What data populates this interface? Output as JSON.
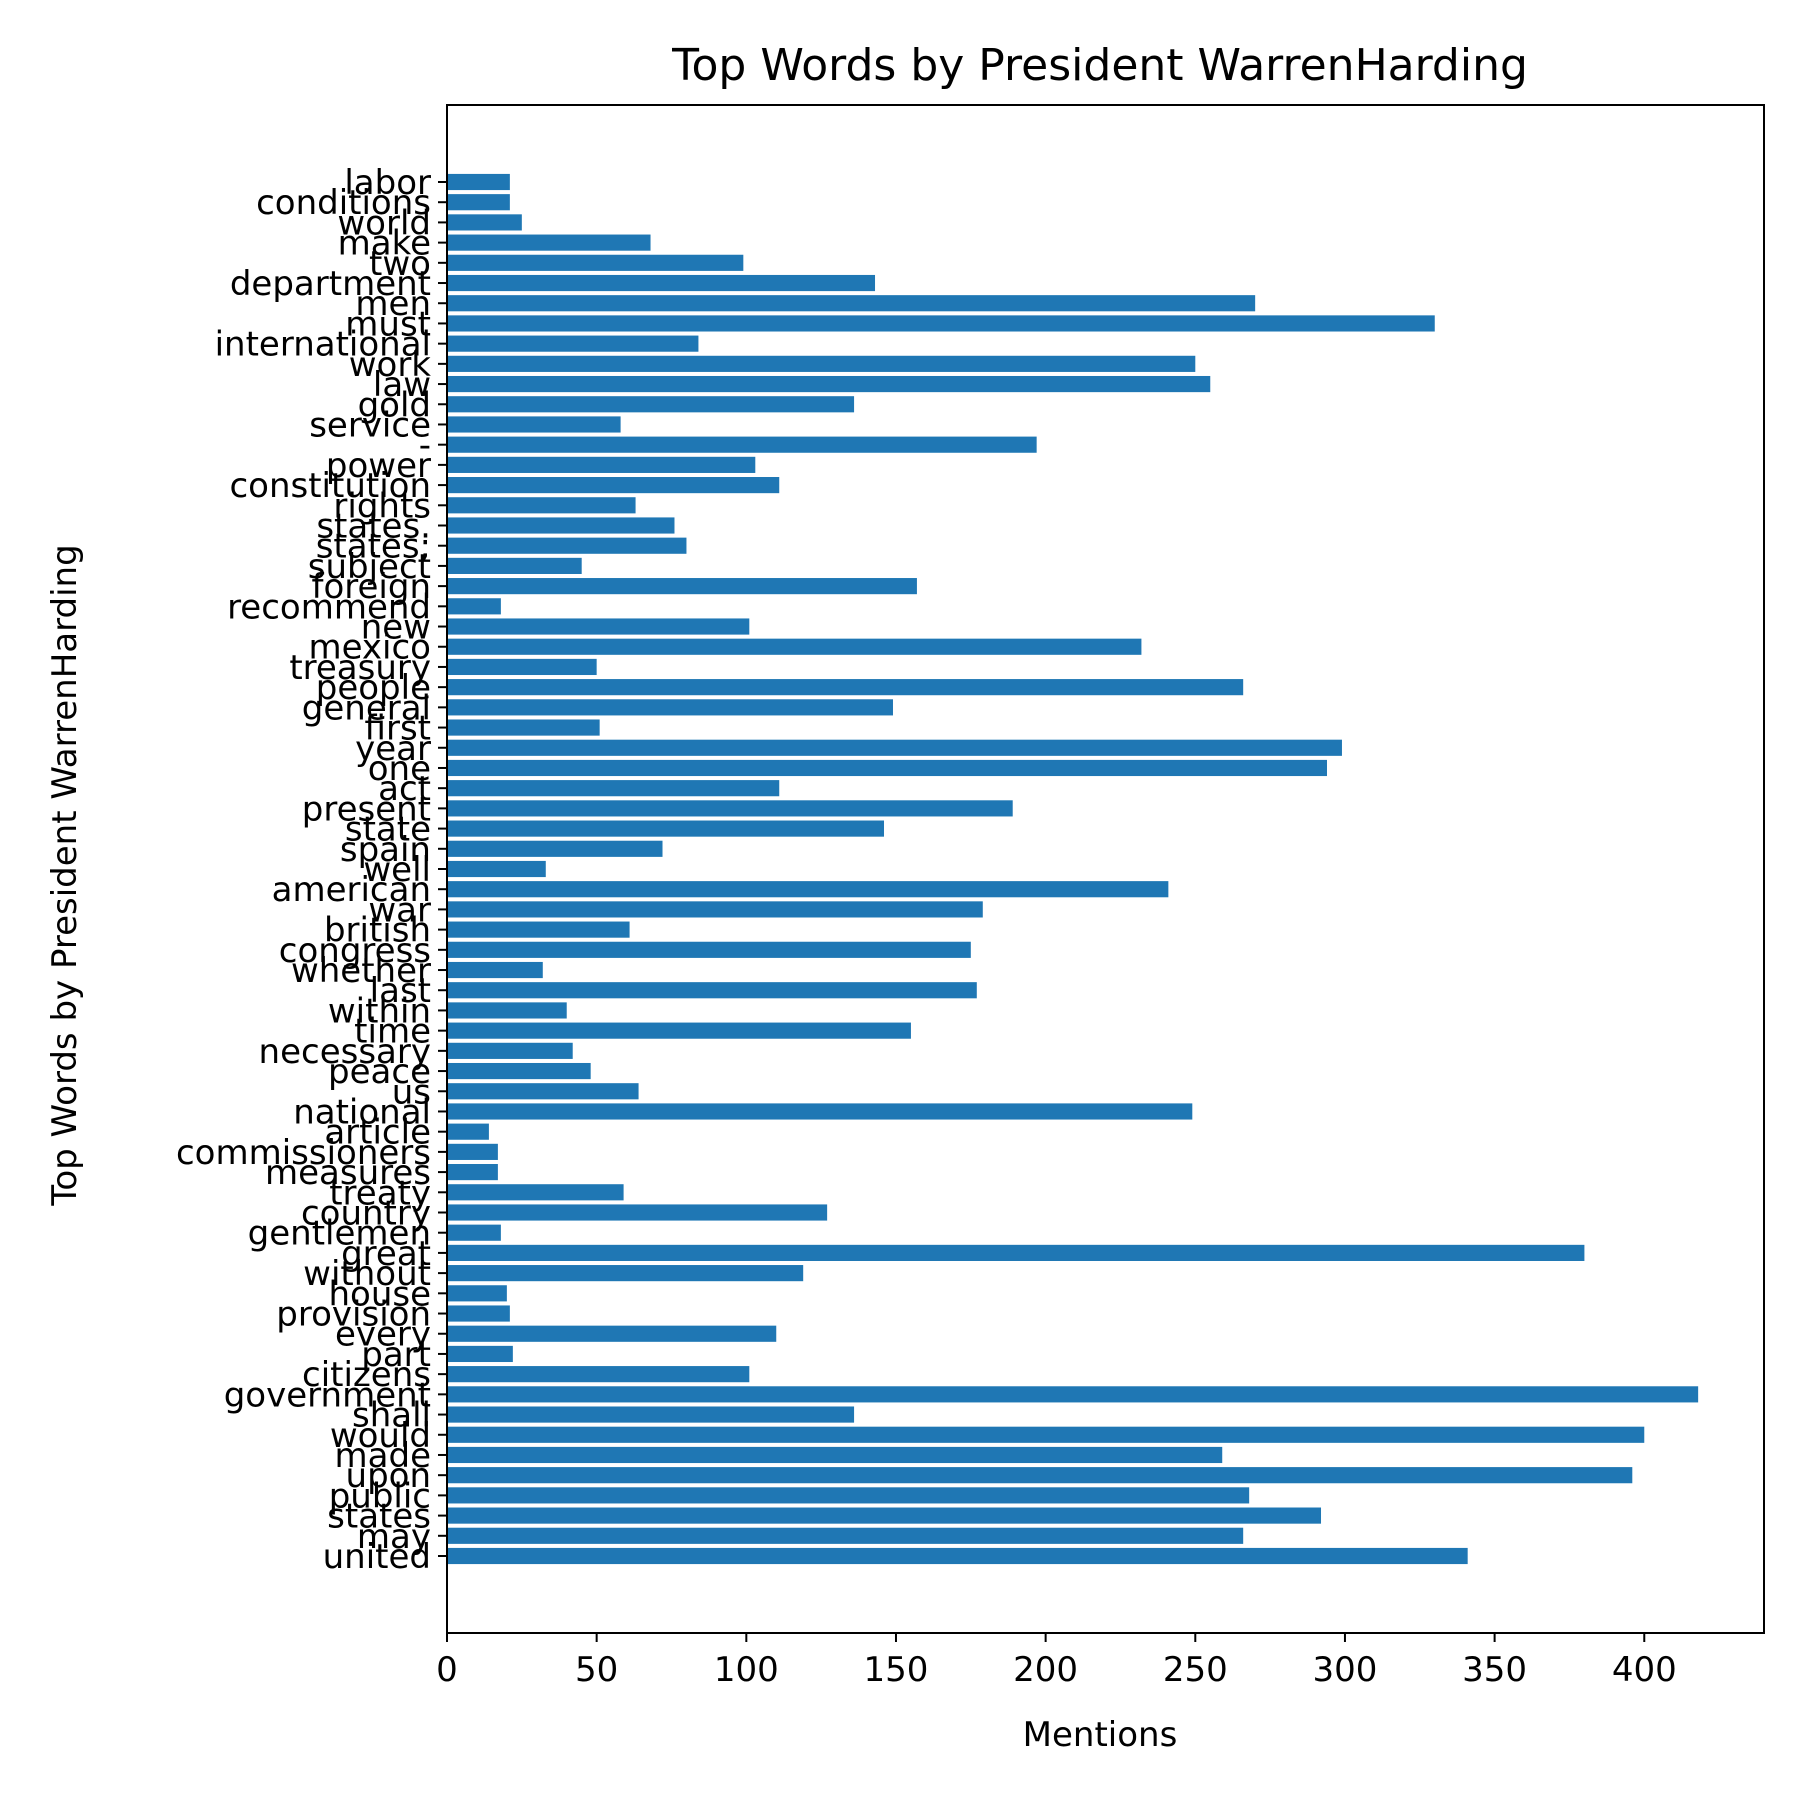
{
  "chart_data": {
    "type": "bar",
    "orientation": "horizontal",
    "title": "Top Words by President WarrenHarding",
    "xlabel": "Mentions",
    "ylabel": "Top Words by President WarrenHarding",
    "xlim": [
      0,
      440
    ],
    "xticks": [
      0,
      50,
      100,
      150,
      200,
      250,
      300,
      350,
      400
    ],
    "grid": false,
    "bar_color": "#1f77b4",
    "categories": [
      "united",
      "may",
      "states",
      "public",
      "upon",
      "made",
      "would",
      "shall",
      "government",
      "citizens",
      "part",
      "every",
      "provision",
      "house",
      "without",
      "great",
      "gentlemen",
      "country",
      "treaty",
      "measures",
      "commissioners",
      "article",
      "national",
      "us",
      "peace",
      "necessary",
      "time",
      "within",
      "last",
      "whether",
      "congress",
      "british",
      "war",
      "american",
      "well",
      "spain",
      "state",
      "present",
      "act",
      "one",
      "year",
      "first",
      "general",
      "people",
      "treasury",
      "mexico",
      "new",
      "recommend",
      "foreign",
      "subject",
      "states;",
      "states.",
      "rights",
      "constitution",
      "power",
      "-",
      "service",
      "gold",
      "law",
      "work",
      "international",
      "must",
      "men",
      "department",
      "two",
      "make",
      "world",
      "conditions",
      "labor"
    ],
    "values": [
      341,
      266,
      292,
      268,
      396,
      259,
      400,
      136,
      418,
      101,
      22,
      110,
      21,
      20,
      119,
      380,
      18,
      127,
      59,
      17,
      17,
      14,
      249,
      64,
      48,
      42,
      155,
      40,
      177,
      32,
      175,
      61,
      179,
      241,
      33,
      72,
      146,
      189,
      111,
      294,
      299,
      51,
      149,
      266,
      50,
      232,
      101,
      18,
      157,
      45,
      80,
      76,
      63,
      111,
      103,
      197,
      58,
      136,
      255,
      250,
      84,
      330,
      270,
      143,
      99,
      68,
      25,
      21,
      21
    ]
  }
}
